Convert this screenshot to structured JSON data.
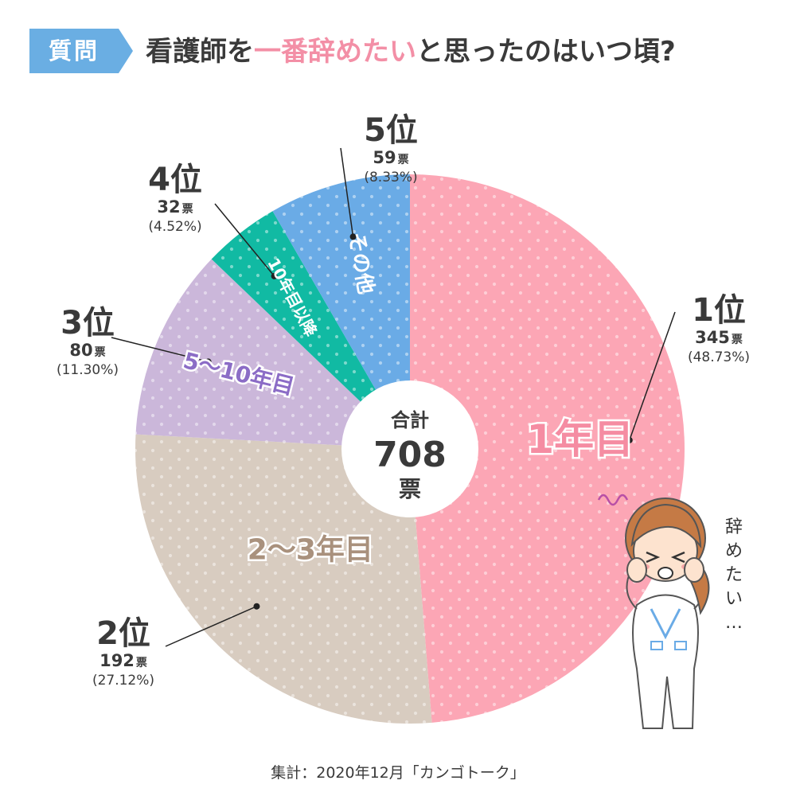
{
  "title": {
    "badge": "質問",
    "prefix": "看護師を",
    "highlight": "一番辞めたい",
    "suffix": "と思ったのはいつ頃?"
  },
  "colors": {
    "badge": "#6aaee3",
    "highlight": "#f38fa6",
    "text": "#3a3a3a"
  },
  "chart_data": {
    "type": "pie",
    "total_label": "合計",
    "total": "708",
    "total_unit": "票",
    "slices": [
      {
        "label": "1年目",
        "value": 345,
        "votes": "345",
        "percent": "(48.73%)",
        "rank": "1位",
        "color": "#fca6b5",
        "label_color": "#f58ca2"
      },
      {
        "label": "2〜3年目",
        "value": 192,
        "votes": "192",
        "percent": "(27.12%)",
        "rank": "2位",
        "color": "#d8ccc0",
        "label_color": "#a9917d"
      },
      {
        "label": "5〜10年目",
        "value": 80,
        "votes": "80",
        "percent": "(11.30%)",
        "rank": "3位",
        "color": "#cbb7da",
        "label_color": "#8b6cc6"
      },
      {
        "label": "10年目以降",
        "value": 32,
        "votes": "32",
        "percent": "(4.52%)",
        "rank": "4位",
        "color": "#11baa3",
        "label_color": "#ffffff"
      },
      {
        "label": "その他",
        "value": 59,
        "votes": "59",
        "percent": "(8.33%)",
        "rank": "5位",
        "color": "#6aabe6",
        "label_color": "#ffffff"
      }
    ],
    "vote_unit": "票"
  },
  "speech": "辞めたい…",
  "footer": "集計：2020年12月「カンゴトーク」"
}
